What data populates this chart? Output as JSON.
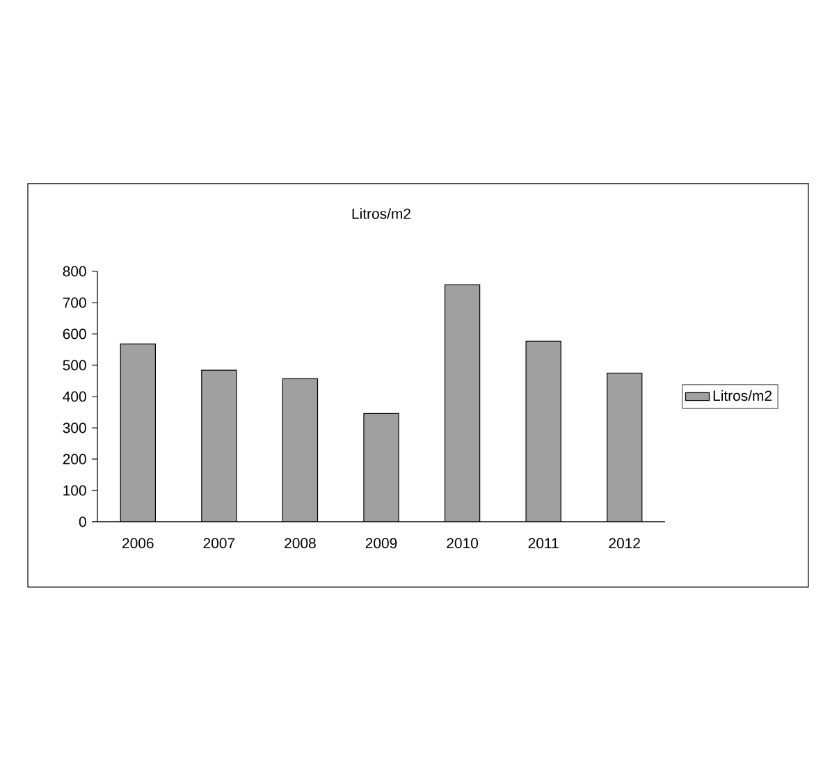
{
  "chart_data": {
    "type": "bar",
    "title": "Litros/m2",
    "categories": [
      "2006",
      "2007",
      "2008",
      "2009",
      "2010",
      "2011",
      "2012"
    ],
    "series": [
      {
        "name": "Litros/m2",
        "color": "#a0a0a0",
        "values": [
          568,
          484,
          457,
          346,
          757,
          577,
          475
        ]
      }
    ],
    "ylim": [
      0,
      800
    ],
    "yticks": [
      0,
      100,
      200,
      300,
      400,
      500,
      600,
      700,
      800
    ],
    "grid": false,
    "legend": "right"
  }
}
